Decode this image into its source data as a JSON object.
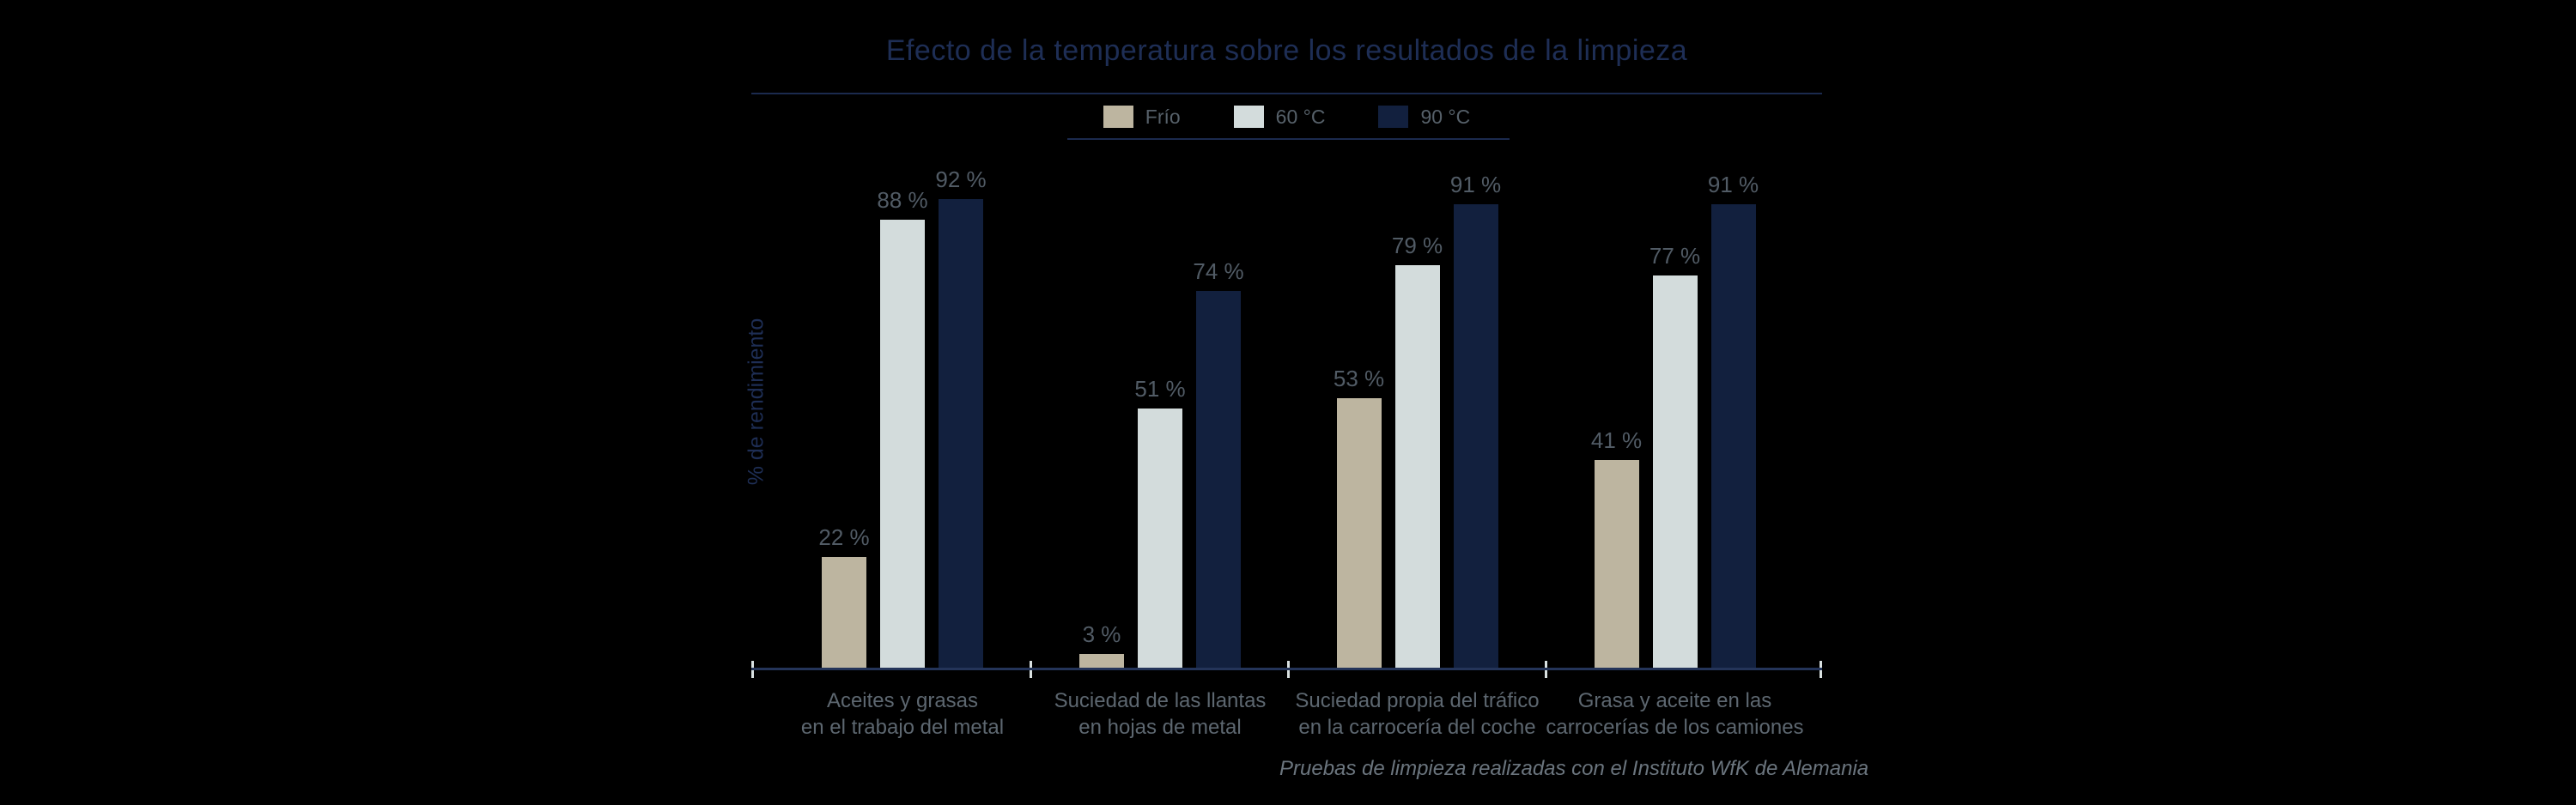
{
  "colors": {
    "background": "#000000",
    "title_text": "#1e2e55",
    "rule_line": "#1b2a4e",
    "axis_line": "#243459",
    "tick_mark": "#d9e1e1",
    "value_label_text": "#515b65",
    "category_label_text": "#5d6770",
    "legend_label_text": "#566069",
    "footnote_text": "#6b757e"
  },
  "chart_data": {
    "type": "bar",
    "title": "Efecto de la temperatura sobre los resultados de la limpieza",
    "xlabel": "",
    "ylabel": "% de rendimiento",
    "ylim": [
      0,
      100
    ],
    "grid": false,
    "legend_position": "top-center",
    "value_suffix": " %",
    "categories": [
      "Aceites y grasas\nen el trabajo del metal",
      "Suciedad de las llantas\nen hojas de metal",
      "Suciedad propia del tráfico\nen la carrocería del coche",
      "Grasa y aceite en las\ncarrocerías de los camiones"
    ],
    "series": [
      {
        "name": "Frío",
        "color": "#bdb5a0",
        "values": [
          22,
          3,
          53,
          41
        ]
      },
      {
        "name": "60 °C",
        "color": "#d3dcdc",
        "values": [
          88,
          51,
          79,
          77
        ]
      },
      {
        "name": "90 °C",
        "color": "#12203e",
        "values": [
          92,
          74,
          91,
          91
        ]
      }
    ],
    "footnote": "Pruebas de limpieza realizadas con el Instituto WfK de Alemania"
  }
}
